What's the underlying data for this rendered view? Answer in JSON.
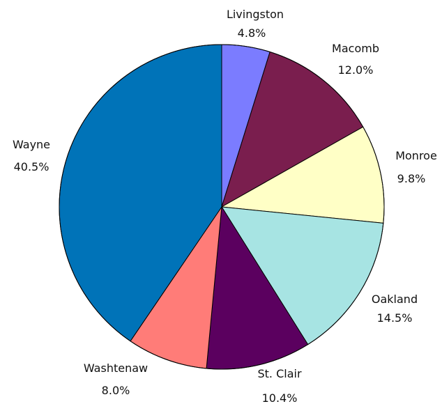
{
  "chart_data": {
    "type": "pie",
    "title": "",
    "start_angle_deg": 0,
    "direction": "clockwise",
    "slices": [
      {
        "key": "livingston",
        "label": "Livingston",
        "value_label": "4.8%",
        "value": 4.8,
        "color": "#7b7cff"
      },
      {
        "key": "macomb",
        "label": "Macomb",
        "value_label": "12.0%",
        "value": 12.0,
        "color": "#7a1e4e"
      },
      {
        "key": "monroe",
        "label": "Monroe",
        "value_label": "9.8%",
        "value": 9.8,
        "color": "#ffffc6"
      },
      {
        "key": "oakland",
        "label": "Oakland",
        "value_label": "14.5%",
        "value": 14.5,
        "color": "#a7e4e3"
      },
      {
        "key": "st-clair",
        "label": "St. Clair",
        "value_label": "10.4%",
        "value": 10.4,
        "color": "#5b005f"
      },
      {
        "key": "washtenaw",
        "label": "Washtenaw",
        "value_label": "8.0%",
        "value": 8.0,
        "color": "#ff7c78"
      },
      {
        "key": "wayne",
        "label": "Wayne",
        "value_label": "40.5%",
        "value": 40.5,
        "color": "#0073b8"
      }
    ]
  }
}
